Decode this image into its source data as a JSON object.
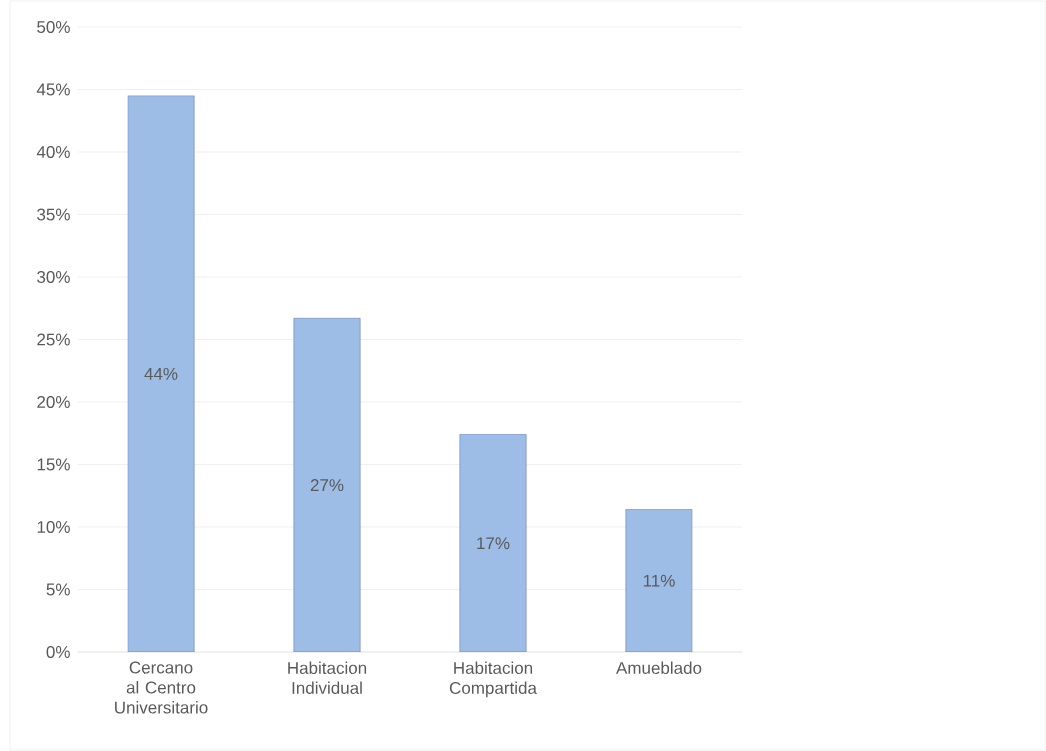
{
  "chart_data": {
    "type": "bar",
    "categories": [
      "Cercano al Centro Universitario",
      "Habitacion Individual",
      "Habitacion Compartida",
      "Amueblado"
    ],
    "values": [
      44.5,
      26.7,
      17.4,
      11.4
    ],
    "value_labels": [
      "44%",
      "27%",
      "17%",
      "11%"
    ],
    "color": "#9dbde6",
    "ylim": [
      0,
      50
    ],
    "yticks": [
      {
        "value": 0,
        "label": "0%"
      },
      {
        "value": 5,
        "label": "5%"
      },
      {
        "value": 10,
        "label": "10%"
      },
      {
        "value": 15,
        "label": "15%"
      },
      {
        "value": 20,
        "label": "20%"
      },
      {
        "value": 25,
        "label": "25%"
      },
      {
        "value": 30,
        "label": "30%"
      },
      {
        "value": 35,
        "label": "35%"
      },
      {
        "value": 40,
        "label": "40%"
      },
      {
        "value": 45,
        "label": "45%"
      },
      {
        "value": 50,
        "label": "50%"
      }
    ],
    "grid": "y"
  }
}
